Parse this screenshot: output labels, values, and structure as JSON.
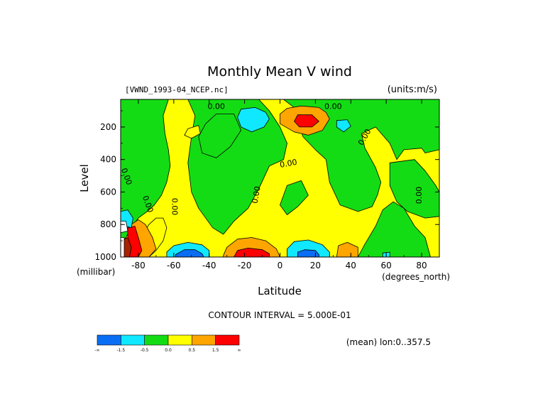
{
  "chart_data": {
    "type": "heatmap",
    "title": "Monthly Mean V wind",
    "dataset_label": "[VWND_1993-04_NCEP.nc]",
    "units_label": "(units:m/s)",
    "xlabel": "Latitude",
    "xunits": "(degrees_north)",
    "ylabel": "Level",
    "yunits": "(millibar)",
    "xlim": [
      -90,
      90
    ],
    "ylim": [
      1000,
      30
    ],
    "y_inverted": true,
    "x_ticks": [
      -80,
      -60,
      -40,
      -20,
      0,
      20,
      40,
      60,
      80
    ],
    "y_ticks": [
      200,
      400,
      600,
      800,
      1000
    ],
    "contour_note": "CONTOUR INTERVAL = 5.000E-01",
    "footer_note": "(mean) lon:0..357.5",
    "contour_labels": [
      {
        "text": "0.00",
        "lat": -36,
        "level": 90,
        "angle": 0
      },
      {
        "text": "0.00",
        "lat": 30,
        "level": 90,
        "angle": 0
      },
      {
        "text": "0.00",
        "lat": 49,
        "level": 270,
        "angle": -60
      },
      {
        "text": "0.00",
        "lat": 5,
        "level": 440,
        "angle": -10
      },
      {
        "text": "0.00",
        "lat": -88,
        "level": 510,
        "angle": 70
      },
      {
        "text": "0.00",
        "lat": -12,
        "level": 620,
        "angle": -80
      },
      {
        "text": "0.00",
        "lat": -76,
        "level": 680,
        "angle": 70
      },
      {
        "text": "0.00",
        "lat": -61,
        "level": 690,
        "angle": 90
      },
      {
        "text": "0.00",
        "lat": 80,
        "level": 620,
        "angle": -90
      }
    ],
    "colorbar": {
      "colors": [
        "#0a6ef5",
        "#10e8ff",
        "#14dc14",
        "#ffff00",
        "#ffa500",
        "#ff0000"
      ],
      "labels": [
        "-∞",
        "-1.5",
        "-0.5",
        "0.0",
        "0.5",
        "1.5",
        "∞"
      ]
    },
    "regions": [
      {
        "color": "#14dc14",
        "pts": [
          [
            -90,
            30
          ],
          [
            90,
            30
          ],
          [
            90,
            1000
          ],
          [
            -90,
            1000
          ]
        ]
      },
      {
        "color": "#ffff00",
        "pts": [
          [
            -63,
            30
          ],
          [
            -52,
            30
          ],
          [
            -48,
            130
          ],
          [
            -50,
            260
          ],
          [
            -52,
            420
          ],
          [
            -50,
            600
          ],
          [
            -46,
            700
          ],
          [
            -38,
            820
          ],
          [
            -32,
            860
          ],
          [
            -26,
            780
          ],
          [
            -18,
            700
          ],
          [
            -12,
            580
          ],
          [
            -6,
            440
          ],
          [
            2,
            400
          ],
          [
            4,
            300
          ],
          [
            0,
            200
          ],
          [
            -6,
            100
          ],
          [
            -12,
            30
          ],
          [
            2,
            30
          ],
          [
            8,
            80
          ],
          [
            10,
            160
          ],
          [
            13,
            260
          ],
          [
            20,
            340
          ],
          [
            26,
            400
          ],
          [
            28,
            540
          ],
          [
            34,
            680
          ],
          [
            44,
            720
          ],
          [
            52,
            690
          ],
          [
            55,
            620
          ],
          [
            57,
            540
          ],
          [
            54,
            450
          ],
          [
            48,
            330
          ],
          [
            46,
            240
          ],
          [
            54,
            200
          ],
          [
            62,
            300
          ],
          [
            66,
            400
          ],
          [
            70,
            340
          ],
          [
            80,
            330
          ],
          [
            82,
            360
          ],
          [
            90,
            340
          ],
          [
            90,
            1000
          ],
          [
            85,
            1000
          ],
          [
            82,
            880
          ],
          [
            76,
            810
          ],
          [
            70,
            700
          ],
          [
            64,
            660
          ],
          [
            58,
            710
          ],
          [
            54,
            810
          ],
          [
            48,
            920
          ],
          [
            44,
            1000
          ],
          [
            -90,
            1000
          ],
          [
            -90,
            920
          ],
          [
            -87,
            880
          ],
          [
            -84,
            820
          ],
          [
            -80,
            760
          ],
          [
            -75,
            720
          ],
          [
            -71,
            680
          ],
          [
            -67,
            620
          ],
          [
            -64,
            540
          ],
          [
            -62,
            440
          ],
          [
            -63,
            340
          ],
          [
            -65,
            240
          ],
          [
            -66,
            130
          ]
        ]
      },
      {
        "color": "#14dc14",
        "pts": [
          [
            -36,
            120
          ],
          [
            -26,
            120
          ],
          [
            -22,
            220
          ],
          [
            -28,
            320
          ],
          [
            -36,
            390
          ],
          [
            -44,
            360
          ],
          [
            -46,
            260
          ],
          [
            -42,
            180
          ]
        ]
      },
      {
        "color": "#ffff00",
        "pts": [
          [
            -52,
            210
          ],
          [
            -46,
            190
          ],
          [
            -45,
            240
          ],
          [
            -50,
            270
          ],
          [
            -54,
            250
          ]
        ]
      },
      {
        "color": "#14dc14",
        "pts": [
          [
            62,
            420
          ],
          [
            76,
            400
          ],
          [
            82,
            470
          ],
          [
            88,
            560
          ],
          [
            90,
            600
          ],
          [
            90,
            750
          ],
          [
            82,
            760
          ],
          [
            72,
            720
          ],
          [
            66,
            660
          ],
          [
            62,
            560
          ]
        ]
      },
      {
        "color": "#14dc14",
        "pts": [
          [
            4,
            560
          ],
          [
            12,
            530
          ],
          [
            16,
            620
          ],
          [
            10,
            690
          ],
          [
            4,
            740
          ],
          [
            0,
            680
          ]
        ]
      },
      {
        "color": "#ffff00",
        "pts": [
          [
            -82,
            920
          ],
          [
            -78,
            870
          ],
          [
            -74,
            800
          ],
          [
            -70,
            760
          ],
          [
            -66,
            760
          ],
          [
            -64,
            820
          ],
          [
            -66,
            900
          ],
          [
            -70,
            960
          ],
          [
            -74,
            1000
          ],
          [
            -82,
            1000
          ]
        ]
      },
      {
        "color": "#ffa500",
        "pts": [
          [
            -84,
            800
          ],
          [
            -80,
            770
          ],
          [
            -76,
            800
          ],
          [
            -72,
            880
          ],
          [
            -70,
            950
          ],
          [
            -74,
            1000
          ],
          [
            -82,
            1000
          ],
          [
            -86,
            960
          ]
        ]
      },
      {
        "color": "#ff0000",
        "pts": [
          [
            -86,
            820
          ],
          [
            -82,
            810
          ],
          [
            -80,
            880
          ],
          [
            -78,
            960
          ],
          [
            -80,
            1000
          ],
          [
            -86,
            1000
          ]
        ]
      },
      {
        "color": "#aa2200",
        "pts": [
          [
            -90,
            900
          ],
          [
            -86,
            880
          ],
          [
            -84,
            940
          ],
          [
            -85,
            1000
          ],
          [
            -90,
            1000
          ]
        ]
      },
      {
        "color": "#10e8ff",
        "pts": [
          [
            -90,
            720
          ],
          [
            -86,
            710
          ],
          [
            -83,
            760
          ],
          [
            -84,
            820
          ],
          [
            -90,
            800
          ]
        ]
      },
      {
        "color": "#ffffff",
        "pts": [
          [
            -90,
            780
          ],
          [
            -87,
            780
          ],
          [
            -86,
            840
          ],
          [
            -90,
            850
          ]
        ]
      },
      {
        "color": "#ffffff",
        "pts": [
          [
            -90,
            880
          ],
          [
            -88,
            880
          ],
          [
            -88,
            1000
          ],
          [
            -90,
            1000
          ]
        ]
      },
      {
        "color": "#10e8ff",
        "pts": [
          [
            -64,
            970
          ],
          [
            -60,
            930
          ],
          [
            -52,
            910
          ],
          [
            -44,
            925
          ],
          [
            -40,
            960
          ],
          [
            -40,
            1000
          ],
          [
            -64,
            1000
          ]
        ]
      },
      {
        "color": "#0a6ef5",
        "pts": [
          [
            -59,
            985
          ],
          [
            -54,
            955
          ],
          [
            -48,
            955
          ],
          [
            -44,
            980
          ],
          [
            -43,
            1000
          ],
          [
            -59,
            1000
          ]
        ]
      },
      {
        "color": "#ffa500",
        "pts": [
          [
            -32,
            990
          ],
          [
            -30,
            940
          ],
          [
            -24,
            890
          ],
          [
            -16,
            880
          ],
          [
            -8,
            900
          ],
          [
            -2,
            950
          ],
          [
            0,
            1000
          ],
          [
            -32,
            1000
          ]
        ]
      },
      {
        "color": "#ff0000",
        "pts": [
          [
            -26,
            1000
          ],
          [
            -24,
            960
          ],
          [
            -18,
            945
          ],
          [
            -10,
            955
          ],
          [
            -6,
            980
          ],
          [
            -6,
            1000
          ]
        ]
      },
      {
        "color": "#10e8ff",
        "pts": [
          [
            4,
            1000
          ],
          [
            4,
            950
          ],
          [
            8,
            905
          ],
          [
            16,
            895
          ],
          [
            24,
            925
          ],
          [
            28,
            970
          ],
          [
            28,
            1000
          ]
        ]
      },
      {
        "color": "#0a6ef5",
        "pts": [
          [
            10,
            1000
          ],
          [
            10,
            970
          ],
          [
            14,
            955
          ],
          [
            20,
            960
          ],
          [
            22,
            985
          ],
          [
            22,
            1000
          ]
        ]
      },
      {
        "color": "#ffa500",
        "pts": [
          [
            32,
            1000
          ],
          [
            33,
            930
          ],
          [
            38,
            910
          ],
          [
            44,
            940
          ],
          [
            44,
            1000
          ]
        ]
      },
      {
        "color": "#10e8ff",
        "pts": [
          [
            58,
            1000
          ],
          [
            58,
            975
          ],
          [
            62,
            970
          ],
          [
            62,
            1000
          ]
        ]
      },
      {
        "color": "#ffa500",
        "pts": [
          [
            12,
            70
          ],
          [
            22,
            80
          ],
          [
            26,
            110
          ],
          [
            28,
            150
          ],
          [
            24,
            220
          ],
          [
            16,
            250
          ],
          [
            8,
            230
          ],
          [
            0,
            180
          ],
          [
            0,
            120
          ],
          [
            4,
            85
          ]
        ]
      },
      {
        "color": "#ff0000",
        "pts": [
          [
            10,
            125
          ],
          [
            18,
            125
          ],
          [
            22,
            165
          ],
          [
            18,
            200
          ],
          [
            11,
            200
          ],
          [
            8,
            165
          ]
        ]
      },
      {
        "color": "#10e8ff",
        "pts": [
          [
            -22,
            90
          ],
          [
            -14,
            80
          ],
          [
            -8,
            110
          ],
          [
            -6,
            150
          ],
          [
            -9,
            200
          ],
          [
            -16,
            230
          ],
          [
            -22,
            200
          ],
          [
            -24,
            140
          ]
        ]
      },
      {
        "color": "#10e8ff",
        "pts": [
          [
            32,
            160
          ],
          [
            38,
            155
          ],
          [
            40,
            195
          ],
          [
            36,
            230
          ],
          [
            32,
            200
          ]
        ]
      }
    ]
  }
}
